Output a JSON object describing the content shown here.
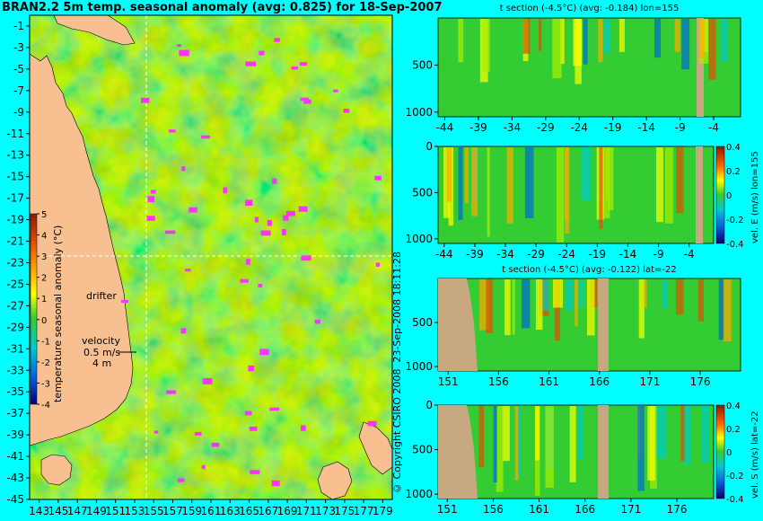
{
  "colors": {
    "background": "#00ffff",
    "land": "#f8c090",
    "ocean_base": "#33cc33",
    "section_land": "#c8a880",
    "vector_arrows": "#ff33ff",
    "gridline": "#ffffff"
  },
  "chart_data": [
    {
      "type": "heatmap",
      "title": "BRAN2.2 5m temp. seasonal anomaly (avg: 0.825) for 18-Sep-2007",
      "x_ticks": [
        "143",
        "145",
        "147",
        "149",
        "151",
        "153",
        "155",
        "157",
        "159",
        "161",
        "163",
        "165",
        "167",
        "169",
        "171",
        "173",
        "175",
        "177",
        "179"
      ],
      "y_ticks": [
        "-1",
        "-3",
        "-5",
        "-7",
        "-9",
        "-11",
        "-13",
        "-15",
        "-17",
        "-19",
        "-21",
        "-23",
        "-25",
        "-27",
        "-29",
        "-31",
        "-33",
        "-35",
        "-37",
        "-39",
        "-41",
        "-43",
        "-45"
      ],
      "xlim": [
        142,
        180
      ],
      "ylim": [
        -45,
        0
      ],
      "crosshair": {
        "lon": 155,
        "lat": -22
      },
      "colorbar": {
        "label": "temperature seasonal anomaly (°C)",
        "ticks": [
          "5",
          "4",
          "3",
          "2",
          "1",
          "0",
          "-1",
          "-2",
          "-3",
          "-4"
        ],
        "range": [
          -4,
          5
        ]
      },
      "legend": {
        "drifter_label": "drifter",
        "velocity_label": "velocity",
        "velocity_value": "0.5 m/s",
        "velocity_depth": "4 m"
      }
    },
    {
      "type": "heatmap",
      "title": "t section (-4.5°C) (avg: -0.184) lon=155",
      "x_ticks": [
        "-44",
        "-39",
        "-34",
        "-29",
        "-24",
        "-19",
        "-14",
        "-9",
        "-4"
      ],
      "y_ticks": [
        "500",
        "1000"
      ],
      "xlim": [
        -45,
        0
      ],
      "ylim": [
        1050,
        0
      ]
    },
    {
      "type": "heatmap",
      "title": "",
      "x_ticks": [
        "-44",
        "-39",
        "-34",
        "-29",
        "-24",
        "-19",
        "-14",
        "-9",
        "-4"
      ],
      "y_ticks": [
        "0",
        "500",
        "1000"
      ],
      "xlim": [
        -45,
        0
      ],
      "ylim": [
        1050,
        0
      ],
      "colorbar": {
        "label": "vel. E (m/s) lon=155",
        "ticks": [
          "0.4",
          "0.2",
          "0",
          "-0.2",
          "-0.4"
        ],
        "range": [
          -0.4,
          0.4
        ]
      }
    },
    {
      "type": "heatmap",
      "title": "t section (-4.5°C) (avg: -0.122) lat=-22",
      "x_ticks": [
        "151",
        "156",
        "161",
        "166",
        "171",
        "176"
      ],
      "y_ticks": [
        "500",
        "1000"
      ],
      "xlim": [
        150,
        180
      ],
      "ylim": [
        1050,
        0
      ]
    },
    {
      "type": "heatmap",
      "title": "",
      "x_ticks": [
        "151",
        "156",
        "161",
        "166",
        "171",
        "176"
      ],
      "y_ticks": [
        "0",
        "500",
        "1000"
      ],
      "xlim": [
        150,
        180
      ],
      "ylim": [
        1050,
        0
      ],
      "colorbar": {
        "label": "vel. S (m/s) lat=-22",
        "ticks": [
          "0.4",
          "0.2",
          "0",
          "-0.2",
          "-0.4"
        ],
        "range": [
          -0.4,
          0.4
        ]
      }
    }
  ],
  "footer": {
    "timestamp": "23-Sep-2008 18:11:28",
    "copyright": "© Copyright CSIRO 2008"
  }
}
